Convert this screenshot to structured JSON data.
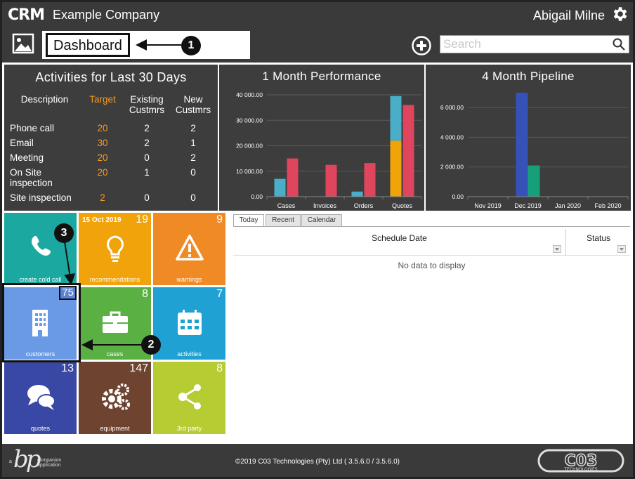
{
  "header": {
    "logo": "CRM",
    "company": "Example Company",
    "user": "Abigail Milne"
  },
  "toolbar": {
    "page_title": "Dashboard",
    "search_placeholder": "Search"
  },
  "callouts": [
    "1",
    "2",
    "3"
  ],
  "activities": {
    "title": "Activities for Last 30 Days",
    "headers": [
      "Description",
      "Target",
      "Existing Custmrs",
      "New Custmrs"
    ],
    "rows": [
      {
        "desc": "Phone call",
        "target": "20",
        "existing": "2",
        "new": "2"
      },
      {
        "desc": "Email",
        "target": "30",
        "existing": "2",
        "new": "1"
      },
      {
        "desc": "Meeting",
        "target": "20",
        "existing": "0",
        "new": "2"
      },
      {
        "desc": "On Site inspection",
        "target": "20",
        "existing": "1",
        "new": "0"
      },
      {
        "desc": "Site inspection",
        "target": "2",
        "existing": "0",
        "new": "0"
      }
    ]
  },
  "chart_data": [
    {
      "type": "bar",
      "title": "1 Month Performance",
      "categories": [
        "Cases",
        "Invoices",
        "Orders",
        "Quotes"
      ],
      "y_ticks": [
        "0.00",
        "10 000.00",
        "20 000.00",
        "30 000.00",
        "40 000.00"
      ],
      "ylim": [
        0,
        40000
      ],
      "stacked_first_series": true,
      "series": [
        {
          "color": "#f0a30a",
          "values": [
            0,
            0,
            0,
            22000
          ]
        },
        {
          "color": "#4aaec8",
          "values": [
            7000,
            0,
            2000,
            17500
          ]
        },
        {
          "color": "#e0455e",
          "values": [
            15000,
            12500,
            13200,
            36000
          ]
        }
      ],
      "grid": true
    },
    {
      "type": "bar",
      "title": "4 Month Pipeline",
      "categories": [
        "Nov 2019",
        "Dec 2019",
        "Jan 2020",
        "Feb 2020"
      ],
      "y_ticks": [
        "0.00",
        "2 000.00",
        "4 000.00",
        "6 000.00"
      ],
      "ylim": [
        0,
        7000
      ],
      "series": [
        {
          "color": "#3552b8",
          "values": [
            0,
            7000,
            0,
            0
          ]
        },
        {
          "color": "#16a07a",
          "values": [
            0,
            2100,
            0,
            0
          ]
        }
      ],
      "grid": true
    }
  ],
  "tiles": [
    {
      "label": "create cold call",
      "count": "",
      "color": "#1aa8a0",
      "icon": "phone-icon"
    },
    {
      "label": "recommendations",
      "count": "19",
      "date": "15 Oct 2019",
      "color": "#f0a30a",
      "icon": "lightbulb-icon"
    },
    {
      "label": "warnings",
      "count": "9",
      "color": "#f08a25",
      "icon": "warning-icon"
    },
    {
      "label": "customers",
      "count": "75",
      "color": "#6a9ae6",
      "icon": "building-icon"
    },
    {
      "label": "cases",
      "count": "8",
      "color": "#5bb043",
      "icon": "briefcase-icon"
    },
    {
      "label": "activities",
      "count": "7",
      "color": "#1fa1d3",
      "icon": "calendar-icon"
    },
    {
      "label": "quotes",
      "count": "13",
      "color": "#3a48a5",
      "icon": "speech-bubbles-icon"
    },
    {
      "label": "equipment",
      "count": "147",
      "color": "#6e4330",
      "icon": "gears-icon"
    },
    {
      "label": "3rd party",
      "count": "8",
      "color": "#b7cc33",
      "icon": "share-icon"
    }
  ],
  "schedule": {
    "tabs": [
      "Today",
      "Recent",
      "Calendar"
    ],
    "columns": [
      "Schedule Date",
      "Status"
    ],
    "empty_text": "No data to display"
  },
  "footer": {
    "brand_a": "a",
    "brand_bp": "bp",
    "brand_line1": "companion",
    "brand_line2": "application",
    "copyright": "©2019 C03 Technologies (Pty) Ltd ( 3.5.6.0 / 3.5.6.0)",
    "logo": "C03",
    "logo_sub": "TECHNOLOGIES"
  }
}
